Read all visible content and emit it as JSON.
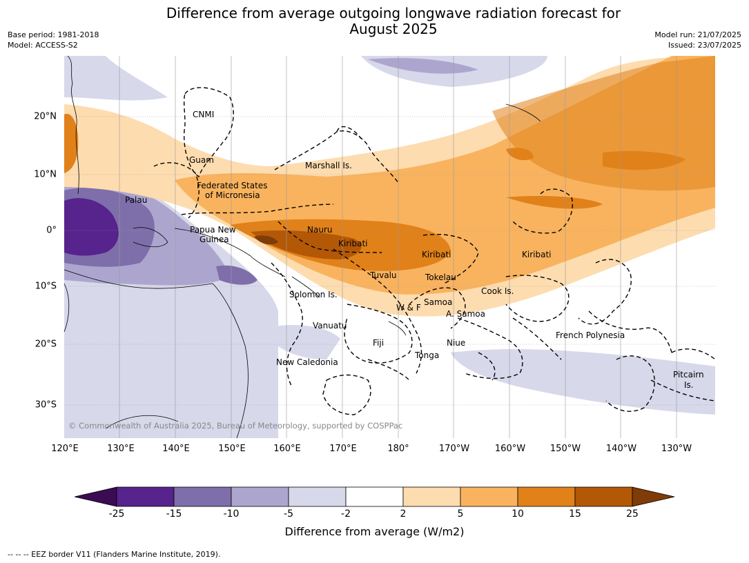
{
  "title": [
    "Difference from average outgoing longwave radiation forecast for",
    "August 2025"
  ],
  "meta_left": [
    "Base period: 1981-2018",
    "Model: ACCESS-S2"
  ],
  "meta_right": [
    "Model run: 21/07/2025",
    "Issued: 23/07/2025"
  ],
  "lon_ticks": [
    "120°E",
    "130°E",
    "140°E",
    "150°E",
    "160°E",
    "170°E",
    "180°",
    "170°W",
    "160°W",
    "150°W",
    "140°W",
    "130°W"
  ],
  "lat_ticks": [
    "20°N",
    "10°N",
    "0°",
    "10°S",
    "20°S",
    "30°S"
  ],
  "regions": [
    "CNMI",
    "Guam",
    "Marshall Is.",
    "Federated States",
    "of Micronesia",
    "Palau",
    "Papua New",
    "Guinea",
    "Nauru",
    "Kiribati",
    "Kiribati",
    "Kiribati",
    "Tuvalu",
    "Tokelau",
    "Solomon Is.",
    "W & F",
    "Samoa",
    "A. Samoa",
    "Cook Is.",
    "Vanuatu",
    "Fiji",
    "Niue",
    "Tonga",
    "French Polynesia",
    "New Caledonia",
    "Pitcairn",
    "Is."
  ],
  "copyright": "© Commonwealth of Australia 2025, Bureau of Meteorology, supported by COSPPac",
  "colorbar": {
    "ticks": [
      "-25",
      "-15",
      "-10",
      "-5",
      "-2",
      "2",
      "5",
      "10",
      "15",
      "25"
    ],
    "colors": [
      "#3b0c53",
      "#57238c",
      "#7e6fab",
      "#aca6cf",
      "#d7d8ea",
      "#ffffff",
      "#fddcaf",
      "#f9b35e",
      "#e0811a",
      "#b35806",
      "#7f3b08"
    ],
    "label": "Difference from average (W/m2)"
  },
  "footer": "--  --  -- EEZ border V11 (Flanders Marine Institute, 2019)."
}
